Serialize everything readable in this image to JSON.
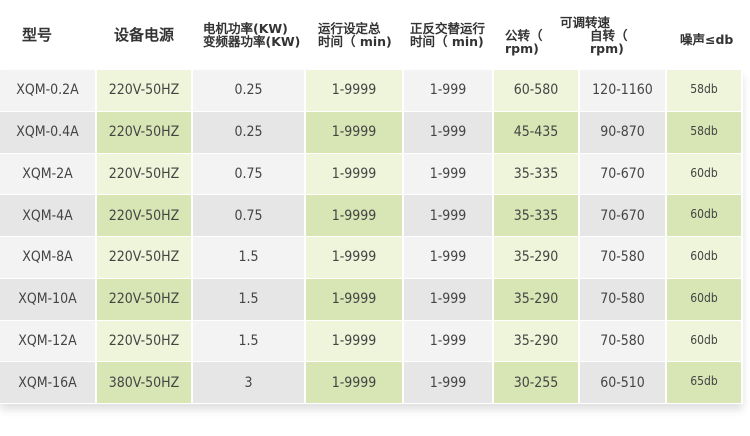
{
  "headers": {
    "model": "型号",
    "power": "设备电源",
    "motor_line1": "电机功率(KW)",
    "motor_line2": "变频器功率(KW)",
    "time_line1": "运行设定总",
    "time_line2": "时间（ min)",
    "alt_line1": "正反交替运行",
    "alt_line2": "时间（ min)",
    "speed_title": "可调转速",
    "revolution": "公转（ rpm)",
    "rotation": "自转（ rpm)",
    "noise": "噪声≤db"
  },
  "rows": [
    [
      "XQM-0.2A",
      "220V-50HZ",
      "0.25",
      "1-9999",
      "1-999",
      "60-580",
      "120-1160",
      "58db"
    ],
    [
      "XQM-0.4A",
      "220V-50HZ",
      "0.25",
      "1-9999",
      "1-999",
      "45-435",
      "90-870",
      "58db"
    ],
    [
      "XQM-2A",
      "220V-50HZ",
      "0.75",
      "1-9999",
      "1-999",
      "35-335",
      "70-670",
      "60db"
    ],
    [
      "XQM-4A",
      "220V-50HZ",
      "0.75",
      "1-9999",
      "1-999",
      "35-335",
      "70-670",
      "60db"
    ],
    [
      "XQM-8A",
      "220V-50HZ",
      "1.5",
      "1-9999",
      "1-999",
      "35-290",
      "70-580",
      "60db"
    ],
    [
      "XQM-10A",
      "220V-50HZ",
      "1.5",
      "1-9999",
      "1-999",
      "35-290",
      "70-580",
      "60db"
    ],
    [
      "XQM-12A",
      "220V-50HZ",
      "1.5",
      "1-9999",
      "1-999",
      "35-290",
      "70-580",
      "60db"
    ],
    [
      "XQM-16A",
      "380V-50HZ",
      "3",
      "1-9999",
      "1-999",
      "30-255",
      "60-510",
      "65db"
    ]
  ]
}
